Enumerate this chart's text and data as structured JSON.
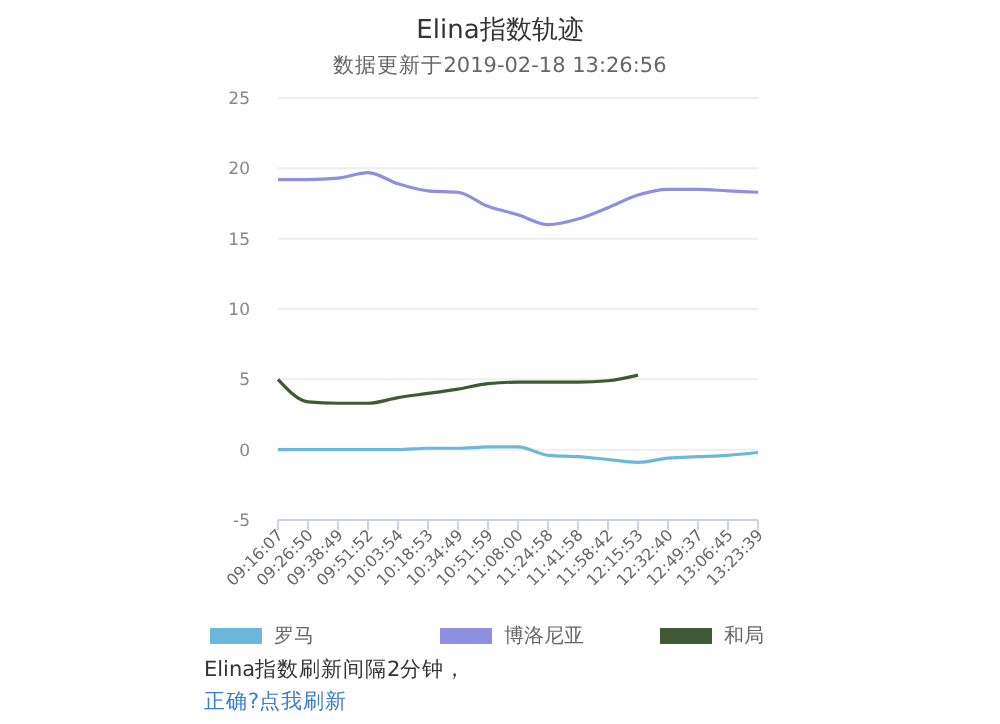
{
  "chart_data": {
    "type": "line",
    "title": "Elina指数轨迹",
    "subtitle": "数据更新于2019-02-18 13:26:56",
    "categories": [
      "09:16:07",
      "09:26:50",
      "09:38:49",
      "09:51:52",
      "10:03:54",
      "10:18:53",
      "10:34:49",
      "10:51:59",
      "11:08:00",
      "11:24:58",
      "11:41:58",
      "11:58:42",
      "12:15:53",
      "12:32:40",
      "12:49:37",
      "13:06:45",
      "13:23:39"
    ],
    "series": [
      {
        "name": "罗马",
        "color": "#6bb8dd",
        "values": [
          0,
          0,
          0,
          0,
          0,
          0.1,
          0.1,
          0.2,
          0.2,
          -0.4,
          -0.5,
          -0.7,
          -0.9,
          -0.6,
          -0.5,
          -0.4,
          -0.2
        ]
      },
      {
        "name": "博洛尼亚",
        "color": "#8f8fe0",
        "values": [
          19.2,
          19.2,
          19.3,
          19.7,
          18.9,
          18.4,
          18.3,
          17.3,
          16.7,
          16.0,
          16.4,
          17.2,
          18.1,
          18.5,
          18.5,
          18.4,
          18.3
        ]
      },
      {
        "name": "和局",
        "color": "#3e5a35",
        "values": [
          5.0,
          3.4,
          3.3,
          3.3,
          3.7,
          4.0,
          4.3,
          4.7,
          4.8,
          4.8,
          4.8,
          4.9,
          5.3,
          null,
          null,
          null,
          null
        ]
      }
    ],
    "ylim": [
      -5,
      25
    ],
    "yticks": [
      -5,
      0,
      5,
      10,
      15,
      20,
      25
    ],
    "grid": "y",
    "legend": "bottom",
    "marker": "none",
    "line_style": "solid",
    "annotations": [
      "Elina指数刷新间隔2分钟，",
      "正确?点我刷新"
    ]
  }
}
